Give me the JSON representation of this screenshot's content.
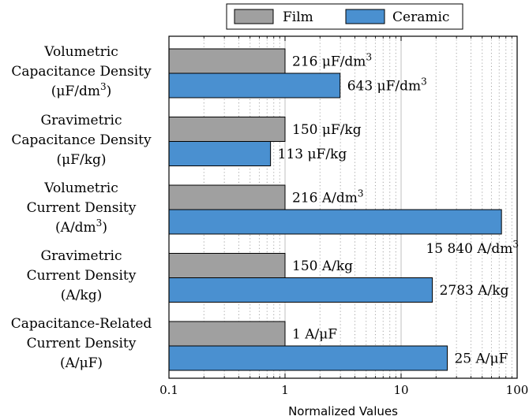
{
  "chart_data": {
    "type": "bar",
    "orientation": "horizontal",
    "x_scale": "log",
    "xlim": [
      0.1,
      100
    ],
    "xlabel": "Normalized Values",
    "x_ticks": [
      "0.1",
      "1",
      "10",
      "100"
    ],
    "grid": "vertical minor dotted",
    "legend_position": "top",
    "categories": [
      [
        "Volumetric",
        "Capacitance Density",
        "(μF/dm³)"
      ],
      [
        "Gravimetric",
        "Capacitance Density",
        "(μF/kg)"
      ],
      [
        "Volumetric",
        "Current Density",
        "(A/dm³)"
      ],
      [
        "Gravimetric",
        "Current Density",
        "(A/kg)"
      ],
      [
        "Capacitance-Related",
        "Current Density",
        "(A/μF)"
      ]
    ],
    "series": [
      {
        "name": "Film",
        "color": "#a0a0a0",
        "values": [
          1,
          1,
          1,
          1,
          1
        ],
        "labels": [
          "216 μF/dm³",
          "150 μF/kg",
          "216 A/dm³",
          "150 A/kg",
          "1 A/μF"
        ]
      },
      {
        "name": "Ceramic",
        "color": "#4a90d0",
        "values": [
          2.98,
          0.75,
          73.3,
          18.6,
          25
        ],
        "labels": [
          "643 μF/dm³",
          "113 μF/kg",
          "15 840 A/dm³",
          "2783 A/kg",
          "25 A/μF"
        ]
      }
    ]
  }
}
